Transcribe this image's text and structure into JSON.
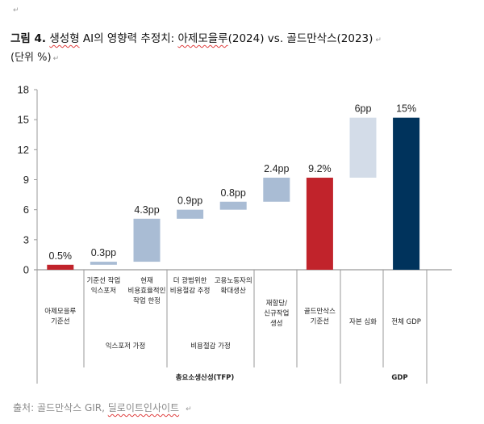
{
  "document": {
    "title_prefix": "그림 4.",
    "title_word_1": "생성형",
    "title_mid": " AI의 영향력 추정치: ",
    "title_word_2": "아제모을루",
    "title_suffix": "(2024) vs. 골드만삭스(2023)",
    "unit": "(단위 %)",
    "source_prefix": "출처: 골드만삭스 GIR, ",
    "source_word": "딜로이트인사이트",
    "paragraph_mark": "↵"
  },
  "colors": {
    "red": "#c1232b",
    "light_blue": "#a9bcd4",
    "pale_blue": "#d3dce8",
    "navy": "#00335c",
    "axis": "#9a9a9a",
    "red_text": "#c1232b",
    "navy_text": "#1f4e79"
  },
  "chart_data": {
    "type": "bar",
    "subtype": "waterfall",
    "title": "생성형 AI의 영향력 추정치: 아제모을루(2024) vs. 골드만삭스(2023)",
    "ylabel": "단위 %",
    "ylim": [
      0,
      18
    ],
    "yticks": [
      "0",
      "3",
      "6",
      "9",
      "12",
      "15",
      "18"
    ],
    "ytick_values": [
      0,
      3,
      6,
      9,
      12,
      15,
      18
    ],
    "grid": false,
    "bars": [
      {
        "category": [
          "아제모을루",
          "기준선"
        ],
        "base": 0,
        "value": 0.5,
        "label": "0.5%",
        "kind": "total-red"
      },
      {
        "category": [
          "기준선 작업",
          "익스포저"
        ],
        "base": 0.5,
        "value": 0.3,
        "label": "0.3pp",
        "kind": "increment"
      },
      {
        "category": [
          "현재",
          "비용효율적인",
          "작업 한정"
        ],
        "base": 0.8,
        "value": 4.3,
        "label": "4.3pp",
        "kind": "increment"
      },
      {
        "category": [
          "더 광범위한",
          "비용절감 추정"
        ],
        "base": 5.1,
        "value": 0.9,
        "label": "0.9pp",
        "kind": "increment"
      },
      {
        "category": [
          "고용노동자의",
          "확대생산"
        ],
        "base": 6.0,
        "value": 0.8,
        "label": "0.8pp",
        "kind": "increment"
      },
      {
        "category": [
          "재할당/",
          "신규작업",
          "생성"
        ],
        "base": 6.8,
        "value": 2.4,
        "label": "2.4pp",
        "kind": "increment"
      },
      {
        "category": [
          "골드만삭스",
          "기준선"
        ],
        "base": 0,
        "value": 9.2,
        "label": "9.2%",
        "kind": "total-red"
      },
      {
        "category": [
          "자본 심화"
        ],
        "base": 9.2,
        "value": 6.0,
        "label": "6pp",
        "kind": "increment-pale"
      },
      {
        "category": [
          "전체 GDP"
        ],
        "base": 0,
        "value": 15.2,
        "label": "15%",
        "kind": "total-navy"
      }
    ],
    "groups": [
      {
        "label": "익스포저 가정",
        "level": 2
      },
      {
        "label": "비용절감 가정",
        "level": 2
      },
      {
        "label": "총요소생산성(TFP)",
        "level": 3
      },
      {
        "label": "GDP",
        "level": 3
      }
    ]
  }
}
